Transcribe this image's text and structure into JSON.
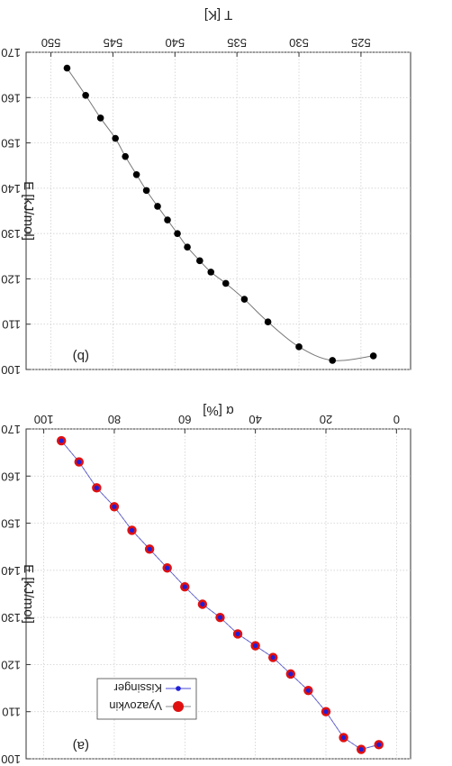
{
  "chart_data": [
    {
      "type": "scatter",
      "panel_label": "(a)",
      "xlabel": "α [%]",
      "ylabel": "E [kJ/mol]",
      "xlim": [
        -4,
        105
      ],
      "ylim": [
        100,
        170
      ],
      "x_ticks": [
        0,
        20,
        40,
        60,
        80,
        100
      ],
      "y_ticks": [
        100,
        110,
        120,
        130,
        140,
        150,
        160,
        170
      ],
      "x_tick_labels": [
        "0",
        "20",
        "40",
        "60",
        "80",
        "100"
      ],
      "y_tick_labels": [
        "100",
        "110",
        "120",
        "130",
        "140",
        "150",
        "160",
        "170"
      ],
      "orientation": "rotated-180",
      "grid": true,
      "legend_position": "bottom-left",
      "series": [
        {
          "name": "Kissinger",
          "color": "#1f1fd6",
          "marker": "small-dot-with-line",
          "x": [
            5,
            10,
            15,
            20,
            25,
            30,
            35,
            40,
            45,
            50,
            55,
            60,
            65,
            70,
            75,
            80,
            85,
            90,
            95
          ],
          "y": [
            103.0,
            102.0,
            104.5,
            110.0,
            114.5,
            118.0,
            121.5,
            124.0,
            126.5,
            130.0,
            132.8,
            136.5,
            140.5,
            144.5,
            148.5,
            153.5,
            157.5,
            163.0,
            167.5
          ]
        },
        {
          "name": "Vyazovkin",
          "color": "#e01010",
          "marker": "large-dot",
          "x": [
            5,
            10,
            15,
            20,
            25,
            30,
            35,
            40,
            45,
            50,
            55,
            60,
            65,
            70,
            75,
            80,
            85,
            90,
            95
          ],
          "y": [
            103.0,
            102.0,
            104.5,
            110.0,
            114.5,
            118.0,
            121.5,
            124.0,
            126.5,
            130.0,
            132.8,
            136.5,
            140.5,
            144.5,
            148.5,
            153.5,
            157.5,
            163.0,
            167.5
          ]
        }
      ]
    },
    {
      "type": "line",
      "panel_label": "(b)",
      "xlabel": "T [K]",
      "ylabel": "E [kJ/mol]",
      "xlim": [
        521,
        552
      ],
      "ylim": [
        100,
        170
      ],
      "x_ticks": [
        525,
        530,
        535,
        540,
        545,
        550
      ],
      "y_ticks": [
        100,
        110,
        120,
        130,
        140,
        150,
        160,
        170
      ],
      "x_tick_labels": [
        "525",
        "530",
        "535",
        "540",
        "545",
        "550"
      ],
      "y_tick_labels": [
        "100",
        "110",
        "120",
        "130",
        "140",
        "150",
        "160",
        "170"
      ],
      "orientation": "rotated-180",
      "grid": true,
      "series": [
        {
          "color": "#000000",
          "marker": "black-dot-with-curve",
          "x": [
            524.0,
            527.3,
            530.0,
            532.5,
            534.4,
            535.9,
            537.1,
            538.0,
            539.0,
            539.8,
            540.6,
            541.4,
            542.3,
            543.1,
            544.0,
            544.8,
            546.0,
            547.2,
            548.7
          ],
          "y": [
            103.0,
            102.0,
            105.0,
            110.5,
            115.5,
            119.0,
            121.5,
            124.0,
            127.0,
            130.0,
            133.0,
            136.0,
            139.5,
            143.0,
            147.0,
            151.0,
            155.5,
            160.5,
            166.5
          ]
        }
      ]
    }
  ]
}
